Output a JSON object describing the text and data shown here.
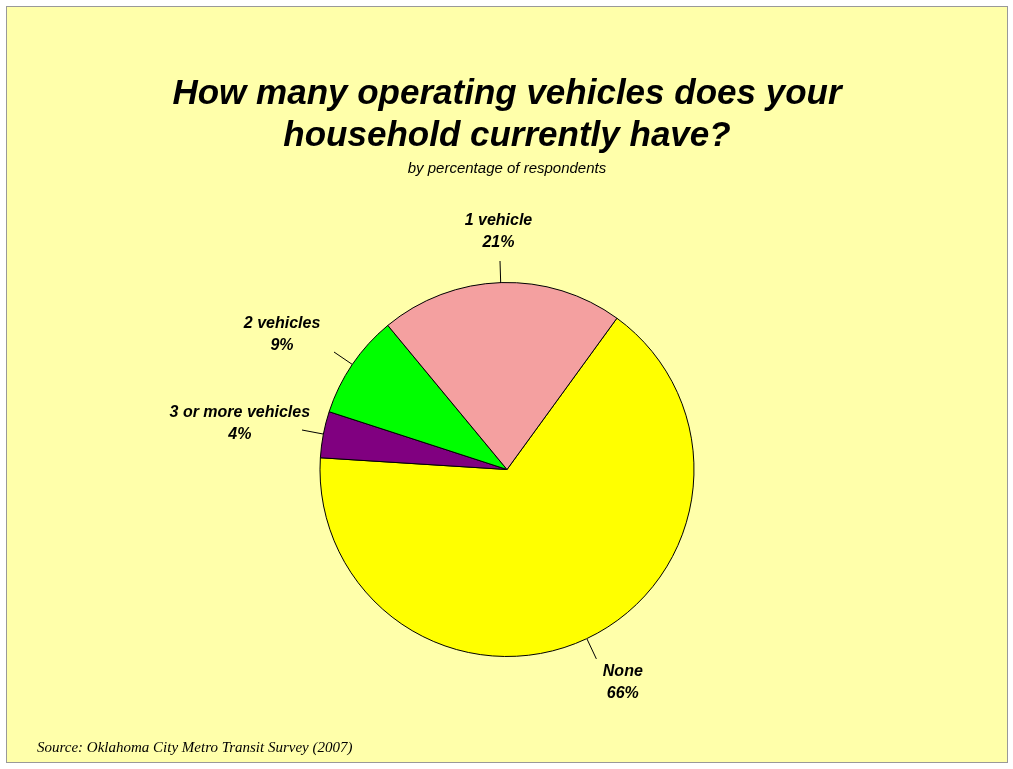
{
  "chart_data": {
    "type": "pie",
    "title": "How many operating vehicles does your household currently have?",
    "subtitle": "by percentage of respondents",
    "categories": [
      "None",
      "3 or more vehicles",
      "2 vehicles",
      "1 vehicle"
    ],
    "values": [
      66,
      4,
      9,
      21
    ],
    "value_labels": [
      "66%",
      "4%",
      "9%",
      "21%"
    ],
    "colors": [
      "#ffff00",
      "#800080",
      "#00ff00",
      "#f4a0a0"
    ],
    "legend": false,
    "annotations": [
      "Source:  Oklahoma City Metro Transit Survey (2007)"
    ]
  }
}
